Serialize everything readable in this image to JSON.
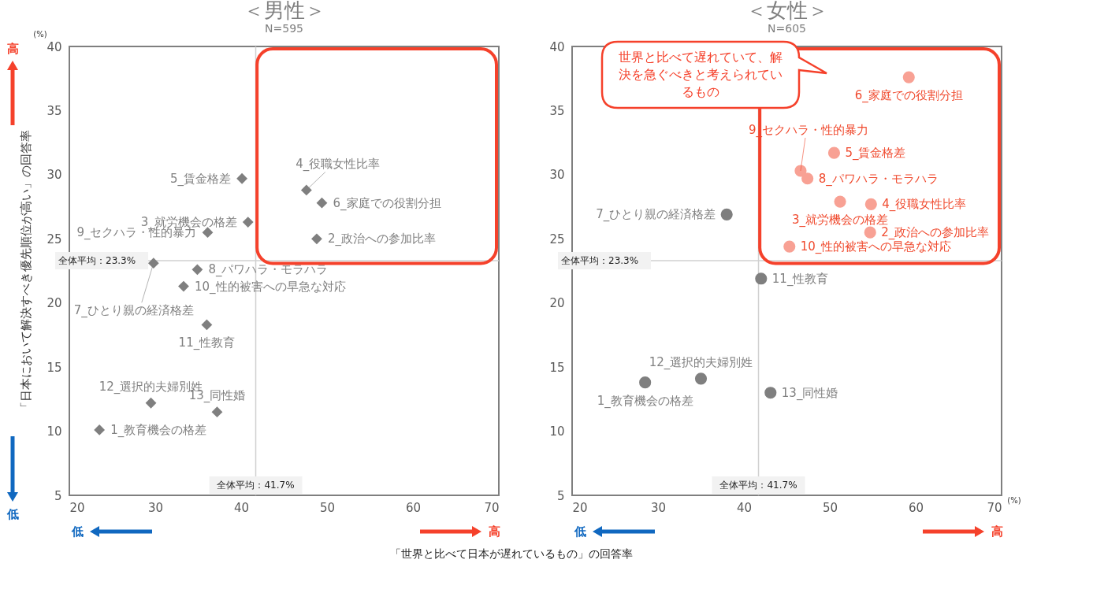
{
  "chart_data": [
    {
      "type": "scatter",
      "title": "＜男性＞",
      "subtitle": "N=595",
      "ylabel": "「日本において解決すべき優先順位が高い」の回答率",
      "xlabel": "「世界と比べて日本が遅れているもの」の回答率",
      "marker": "diamond",
      "x": [
        23.5,
        48.8,
        40.8,
        47.6,
        40.1,
        49.4,
        29.8,
        34.9,
        36.1,
        33.3,
        36.0,
        29.5,
        37.2
      ],
      "values": [
        10.1,
        25.0,
        26.3,
        28.8,
        29.7,
        27.8,
        23.1,
        22.6,
        25.5,
        21.3,
        18.3,
        12.2,
        11.5
      ],
      "colors": [
        "#7f7f7f",
        "#7f7f7f",
        "#7f7f7f",
        "#7f7f7f",
        "#7f7f7f",
        "#7f7f7f",
        "#7f7f7f",
        "#7f7f7f",
        "#7f7f7f",
        "#7f7f7f",
        "#7f7f7f",
        "#7f7f7f",
        "#7f7f7f"
      ],
      "xlim": [
        20,
        70
      ],
      "ylim": [
        5,
        40
      ],
      "xticks": [
        20,
        30,
        40,
        50,
        60,
        70
      ],
      "yticks": [
        5,
        10,
        15,
        20,
        25,
        30,
        35,
        40
      ],
      "ref_lines": [
        {
          "axis": "x",
          "value": 41.7,
          "label": "全体平均：41.7%",
          "color": "#d0d0d0"
        },
        {
          "axis": "y",
          "value": 23.3,
          "label": "全体平均：23.3%",
          "color": "#d0d0d0"
        }
      ],
      "annotations": [
        "高",
        "低",
        "低",
        "高",
        "(%)",
        {
          "text": "1_教育機会の格差",
          "x": 23.5,
          "y": 10.1
        },
        {
          "text": "2_政治への参加比率",
          "x": 48.8,
          "y": 25.0
        },
        {
          "text": "3_就労機会の格差",
          "x": 40.8,
          "y": 26.3
        },
        {
          "text": "4_役職女性比率",
          "x": 47.6,
          "y": 28.8
        },
        {
          "text": "5_賃金格差",
          "x": 40.1,
          "y": 29.7
        },
        {
          "text": "6_家庭での役割分担",
          "x": 49.4,
          "y": 27.8
        },
        {
          "text": "7_ひとり親の経済格差",
          "x": 29.8,
          "y": 23.1
        },
        {
          "text": "8_パワハラ・モラハラ",
          "x": 34.9,
          "y": 22.6
        },
        {
          "text": "9_セクハラ・性的暴力",
          "x": 36.1,
          "y": 25.5
        },
        {
          "text": "10_性的被害への早急な対応",
          "x": 33.3,
          "y": 21.3
        },
        {
          "text": "11_性教育",
          "x": 36.0,
          "y": 18.3
        },
        {
          "text": "12_選択的夫婦別姓",
          "x": 29.5,
          "y": 12.2
        },
        {
          "text": "13_同性婚",
          "x": 37.2,
          "y": 11.5
        }
      ]
    },
    {
      "type": "scatter",
      "title": "＜女性＞",
      "subtitle": "N=605",
      "marker": "circle",
      "x": [
        28.5,
        54.7,
        51.2,
        54.8,
        50.5,
        59.2,
        38.0,
        47.4,
        46.6,
        45.3,
        42.0,
        35.0,
        43.1
      ],
      "values": [
        13.8,
        25.5,
        27.9,
        27.7,
        31.7,
        37.6,
        26.9,
        29.7,
        30.3,
        24.4,
        21.9,
        14.1,
        13.0
      ],
      "colors": [
        "#7f7f7f",
        "#f8a194",
        "#f8a194",
        "#f8a194",
        "#f8a194",
        "#f8a194",
        "#7f7f7f",
        "#f8a194",
        "#f8a194",
        "#f8a194",
        "#7f7f7f",
        "#7f7f7f",
        "#7f7f7f"
      ],
      "xlim": [
        20,
        70
      ],
      "ylim": [
        5,
        40
      ],
      "xticks": [
        20,
        30,
        40,
        50,
        60,
        70
      ],
      "yticks": [
        5,
        10,
        15,
        20,
        25,
        30,
        35,
        40
      ],
      "ref_lines": [
        {
          "axis": "x",
          "value": 41.7,
          "label": "全体平均：41.7%",
          "color": "#d0d0d0"
        },
        {
          "axis": "y",
          "value": 23.3,
          "label": "全体平均：23.3%",
          "color": "#d0d0d0"
        }
      ],
      "annotations": [
        "世界と比べて遅れていて、解決を急ぐべきと考えられているもの",
        "低",
        "高",
        "(%)",
        {
          "text": "1_教育機会の格差",
          "x": 28.5,
          "y": 13.8
        },
        {
          "text": "2_政治への参加比率",
          "x": 54.7,
          "y": 25.5
        },
        {
          "text": "3_就労機会の格差",
          "x": 51.2,
          "y": 27.9
        },
        {
          "text": "4_役職女性比率",
          "x": 54.8,
          "y": 27.7
        },
        {
          "text": "5_賃金格差",
          "x": 50.5,
          "y": 31.7
        },
        {
          "text": "6_家庭での役割分担",
          "x": 59.2,
          "y": 37.6
        },
        {
          "text": "7_ひとり親の経済格差",
          "x": 38.0,
          "y": 26.9
        },
        {
          "text": "8_パワハラ・モラハラ",
          "x": 47.4,
          "y": 29.7
        },
        {
          "text": "9_セクハラ・性的暴力",
          "x": 46.6,
          "y": 30.3
        },
        {
          "text": "10_性的被害への早急な対応",
          "x": 45.3,
          "y": 24.4
        },
        {
          "text": "11_性教育",
          "x": 42.0,
          "y": 21.9
        },
        {
          "text": "12_選択的夫婦別姓",
          "x": 35.0,
          "y": 14.1
        },
        {
          "text": "13_同性婚",
          "x": 43.1,
          "y": 13.0
        }
      ]
    }
  ]
}
